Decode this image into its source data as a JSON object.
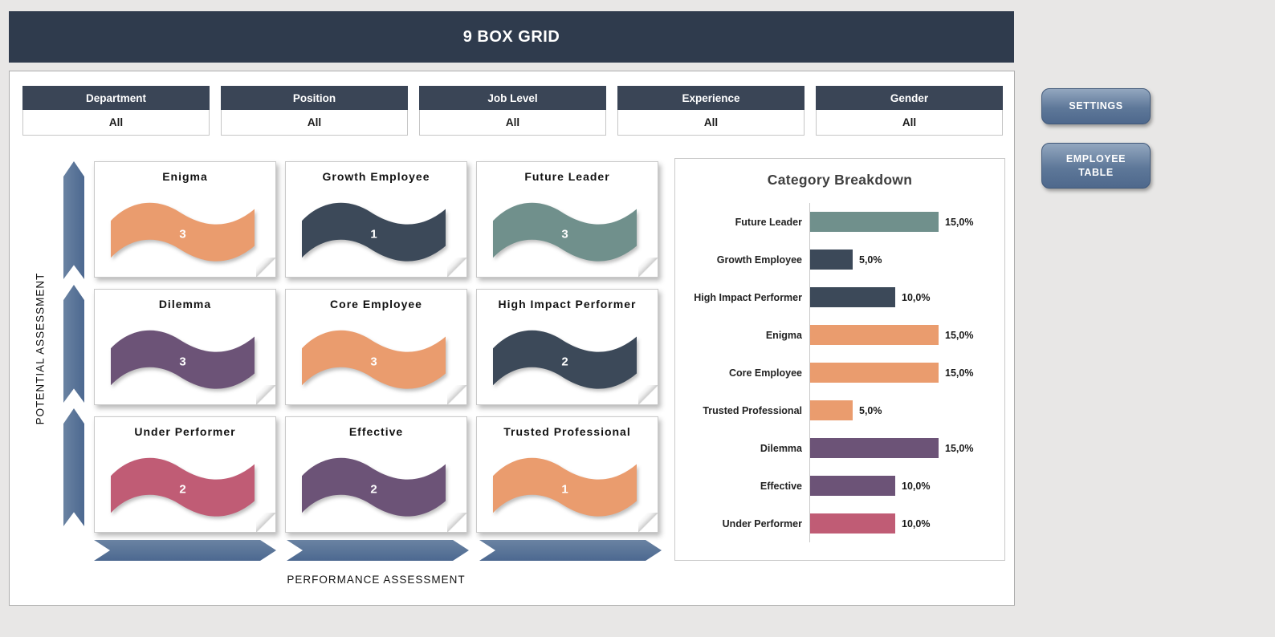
{
  "app": {
    "title": "9 BOX GRID"
  },
  "colors": {
    "header": "#2F3B4D",
    "orange": "#EA9C6E",
    "navy": "#3C4959",
    "teal": "#70908C",
    "purple": "#6C5377",
    "rose": "#C05C75",
    "arrow_blue": "#4C6890",
    "button_blue": "#5E7899"
  },
  "filters": [
    {
      "label": "Department",
      "value": "All"
    },
    {
      "label": "Position",
      "value": "All"
    },
    {
      "label": "Job Level",
      "value": "All"
    },
    {
      "label": "Experience",
      "value": "All"
    },
    {
      "label": "Gender",
      "value": "All"
    }
  ],
  "axes": {
    "y_label": "POTENTIAL ASSESSMENT",
    "x_label": "PERFORMANCE ASSESSMENT"
  },
  "grid": {
    "cells": [
      {
        "title": "Enigma",
        "count": "3",
        "color": "#EA9C6E"
      },
      {
        "title": "Growth Employee",
        "count": "1",
        "color": "#3C4959"
      },
      {
        "title": "Future Leader",
        "count": "3",
        "color": "#70908C"
      },
      {
        "title": "Dilemma",
        "count": "3",
        "color": "#6C5377"
      },
      {
        "title": "Core Employee",
        "count": "3",
        "color": "#EA9C6E"
      },
      {
        "title": "High Impact Performer",
        "count": "2",
        "color": "#3C4959"
      },
      {
        "title": "Under Performer",
        "count": "2",
        "color": "#C05C75"
      },
      {
        "title": "Effective",
        "count": "2",
        "color": "#6C5377"
      },
      {
        "title": "Trusted Professional",
        "count": "1",
        "color": "#EA9C6E"
      }
    ]
  },
  "breakdown": {
    "title": "Category Breakdown",
    "rows": [
      {
        "label": "Future Leader",
        "value": 15,
        "display": "15,0%",
        "color": "#70908C"
      },
      {
        "label": "Growth Employee",
        "value": 5,
        "display": "5,0%",
        "color": "#3C4959"
      },
      {
        "label": "High Impact Performer",
        "value": 10,
        "display": "10,0%",
        "color": "#3C4959"
      },
      {
        "label": "Enigma",
        "value": 15,
        "display": "15,0%",
        "color": "#EA9C6E"
      },
      {
        "label": "Core Employee",
        "value": 15,
        "display": "15,0%",
        "color": "#EA9C6E"
      },
      {
        "label": "Trusted Professional",
        "value": 5,
        "display": "5,0%",
        "color": "#EA9C6E"
      },
      {
        "label": "Dilemma",
        "value": 15,
        "display": "15,0%",
        "color": "#6C5377"
      },
      {
        "label": "Effective",
        "value": 10,
        "display": "10,0%",
        "color": "#6C5377"
      },
      {
        "label": "Under Performer",
        "value": 10,
        "display": "10,0%",
        "color": "#C05C75"
      }
    ]
  },
  "buttons": {
    "settings": "SETTINGS",
    "employee_table": "EMPLOYEE TABLE"
  },
  "chart_data": [
    {
      "type": "bar",
      "orientation": "horizontal",
      "title": "Category Breakdown",
      "categories": [
        "Future Leader",
        "Growth Employee",
        "High Impact Performer",
        "Enigma",
        "Core Employee",
        "Trusted Professional",
        "Dilemma",
        "Effective",
        "Under Performer"
      ],
      "values": [
        15.0,
        5.0,
        10.0,
        15.0,
        15.0,
        5.0,
        15.0,
        10.0,
        10.0
      ],
      "value_labels": [
        "15,0%",
        "5,0%",
        "10,0%",
        "15,0%",
        "15,0%",
        "5,0%",
        "15,0%",
        "10,0%",
        "10,0%"
      ],
      "unit": "%",
      "xlim": [
        0,
        15
      ],
      "grid": false,
      "legend": false
    },
    {
      "type": "table",
      "title": "9 Box Grid counts",
      "xlabel": "PERFORMANCE ASSESSMENT",
      "ylabel": "POTENTIAL ASSESSMENT",
      "rows": [
        [
          "Enigma",
          3
        ],
        [
          "Growth Employee",
          1
        ],
        [
          "Future Leader",
          3
        ],
        [
          "Dilemma",
          3
        ],
        [
          "Core Employee",
          3
        ],
        [
          "High Impact Performer",
          2
        ],
        [
          "Under Performer",
          2
        ],
        [
          "Effective",
          2
        ],
        [
          "Trusted Professional",
          1
        ]
      ]
    }
  ]
}
